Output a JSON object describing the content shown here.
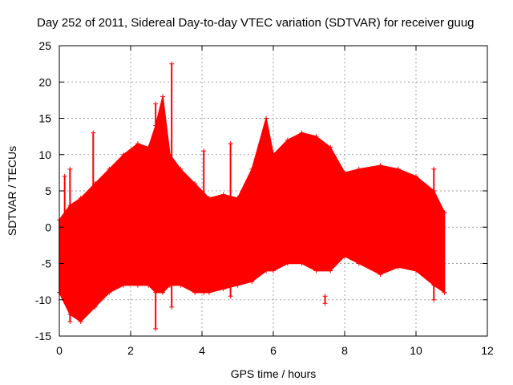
{
  "chart_data": {
    "type": "area",
    "title": "Day 252 of 2011, Sidereal Day-to-day VTEC variation (SDTVAR) for receiver guug",
    "xlabel": "GPS time / hours",
    "ylabel": "SDTVAR / TECUs",
    "xlim": [
      0,
      12
    ],
    "ylim": [
      -15,
      25
    ],
    "x_ticks": [
      0,
      2,
      4,
      6,
      8,
      10,
      12
    ],
    "y_ticks": [
      -15,
      -10,
      -5,
      0,
      5,
      10,
      15,
      20,
      25
    ],
    "x_tick_labels": [
      "0",
      "2",
      "4",
      "6",
      "8",
      "10",
      "12"
    ],
    "y_tick_labels": [
      "-15",
      "-10",
      "-5",
      "0",
      "5",
      "10",
      "15",
      "20",
      "25"
    ],
    "grid": true,
    "legend": "none",
    "series": [
      {
        "name": "SDTVAR",
        "color": "#ff0000",
        "marker": "plus",
        "x": [
          0,
          0.3,
          0.6,
          1.0,
          1.4,
          1.8,
          2.2,
          2.5,
          2.7,
          2.9,
          3.1,
          3.4,
          3.8,
          4.2,
          4.6,
          5.0,
          5.4,
          5.8,
          6.0,
          6.4,
          6.8,
          7.2,
          7.6,
          8.0,
          8.4,
          9.0,
          9.5,
          10.0,
          10.5,
          10.8
        ],
        "upper": [
          1,
          3,
          4,
          6,
          8,
          10,
          11.5,
          11,
          14,
          18,
          10,
          8,
          6,
          4,
          4.5,
          4,
          8,
          15,
          10,
          12,
          13,
          12.5,
          11,
          7.5,
          8,
          8.5,
          8,
          7,
          5,
          2
        ],
        "lower": [
          -9,
          -12,
          -13,
          -11,
          -9,
          -8,
          -8,
          -8,
          -9,
          -9,
          -8,
          -8,
          -9,
          -9,
          -8.5,
          -8,
          -7.5,
          -6,
          -6,
          -5,
          -5,
          -6,
          -6,
          -4,
          -5,
          -6.5,
          -5.5,
          -6,
          -8,
          -9
        ]
      }
    ],
    "spikes": [
      {
        "x": 0.15,
        "low": -5,
        "high": 7
      },
      {
        "x": 0.3,
        "low": -13,
        "high": 8
      },
      {
        "x": 0.95,
        "low": -5,
        "high": 13
      },
      {
        "x": 2.7,
        "low": -14,
        "high": 17
      },
      {
        "x": 3.15,
        "low": -11,
        "high": 22.5
      },
      {
        "x": 4.05,
        "low": -9,
        "high": 10.5
      },
      {
        "x": 4.8,
        "low": -9.5,
        "high": 11.5
      },
      {
        "x": 7.45,
        "low": -10.5,
        "high": -9.5
      },
      {
        "x": 10.5,
        "low": -10,
        "high": 8
      }
    ]
  }
}
